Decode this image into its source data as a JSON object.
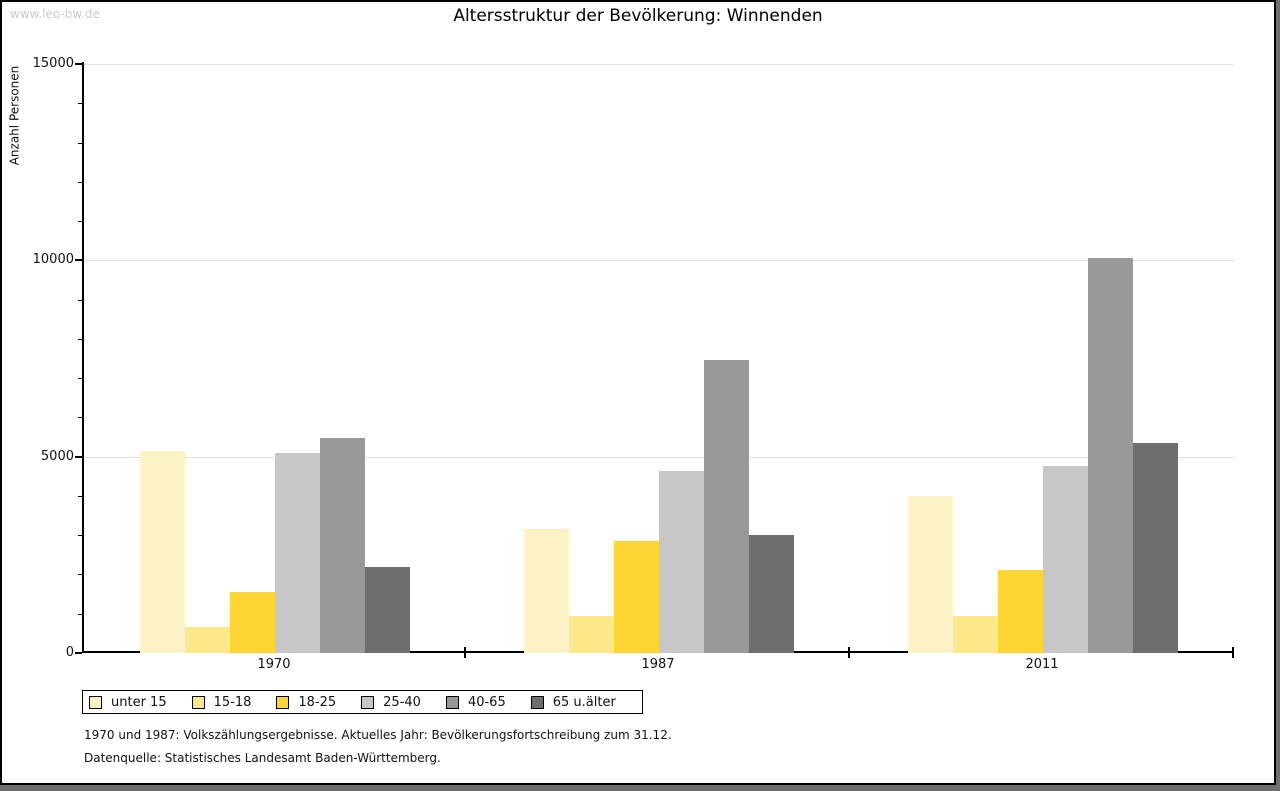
{
  "watermark": "www.leo-bw.de",
  "title": "Altersstruktur der Bevölkerung: Winnenden",
  "y_axis_label": "Anzahl Personen",
  "footnotes": [
    "1970 und 1987: Volkszählungsergebnisse. Aktuelles Jahr: Bevölkerungsfortschreibung zum 31.12.",
    "Datenquelle: Statistisches Landesamt Baden-Württemberg."
  ],
  "colors": {
    "background": "#ffffff",
    "frame_border": "#000000",
    "frame_shadow": "#6f6f6f",
    "gridline": "#e0e0e0",
    "axis": "#000000",
    "watermark_text": "#cbcbcb"
  },
  "chart_data": {
    "type": "bar",
    "title": "Altersstruktur der Bevölkerung: Winnenden",
    "xlabel": "",
    "ylabel": "Anzahl Personen",
    "categories": [
      "1970",
      "1987",
      "2011"
    ],
    "series": [
      {
        "name": "unter 15",
        "color": "#fbf2c6",
        "values": [
          5150,
          3160,
          4000
        ]
      },
      {
        "name": "15-18",
        "color": "#fbe88b",
        "values": [
          650,
          940,
          940
        ]
      },
      {
        "name": "18-25",
        "color": "#fcd433",
        "values": [
          1550,
          2860,
          2120
        ]
      },
      {
        "name": "25-40",
        "color": "#c7c7c7",
        "values": [
          5100,
          4640,
          4770
        ]
      },
      {
        "name": "40-65",
        "color": "#989898",
        "values": [
          5480,
          7450,
          10050
        ]
      },
      {
        "name": "65 u.älter",
        "color": "#6e6e6e",
        "values": [
          2200,
          3010,
          5350
        ]
      }
    ],
    "ylim": [
      0,
      15000
    ],
    "y_major_ticks": [
      0,
      5000,
      10000,
      15000
    ],
    "y_minor_step": 1000,
    "grid": true,
    "legend_position": "bottom"
  }
}
